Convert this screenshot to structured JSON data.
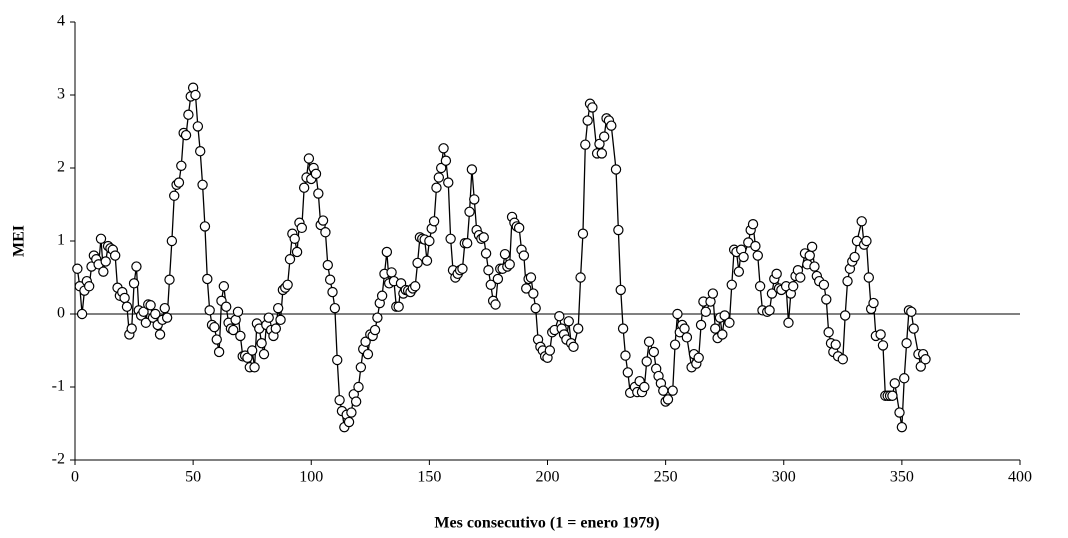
{
  "chart_data": {
    "type": "line",
    "ylabel": "MEI",
    "xlabel": "Mes consecutivo (1 = enero 1979)",
    "xlim": [
      0,
      400
    ],
    "xticks": [
      0,
      50,
      100,
      150,
      200,
      250,
      300,
      350,
      400
    ],
    "ylim": [
      -2,
      4
    ],
    "yticks": [
      -2,
      -1,
      0,
      1,
      2,
      3,
      4
    ],
    "series": [
      {
        "name": "MEI",
        "color": "#000000",
        "x": [
          1,
          2,
          3,
          4,
          5,
          6,
          7,
          8,
          9,
          10,
          11,
          12,
          13,
          14,
          15,
          16,
          17,
          18,
          19,
          20,
          21,
          22,
          23,
          24,
          25,
          26,
          27,
          28,
          29,
          30,
          31,
          32,
          33,
          34,
          35,
          36,
          37,
          38,
          39,
          40,
          41,
          42,
          43,
          44,
          45,
          46,
          47,
          48,
          49,
          50,
          51,
          52,
          53,
          54,
          55,
          56,
          57,
          58,
          59,
          60,
          61,
          62,
          63,
          64,
          65,
          66,
          67,
          68,
          69,
          70,
          71,
          72,
          73,
          74,
          75,
          76,
          77,
          78,
          79,
          80,
          81,
          82,
          83,
          84,
          85,
          86,
          87,
          88,
          89,
          90,
          91,
          92,
          93,
          94,
          95,
          96,
          97,
          98,
          99,
          100,
          101,
          102,
          103,
          104,
          105,
          106,
          107,
          108,
          109,
          110,
          111,
          112,
          113,
          114,
          115,
          116,
          117,
          118,
          119,
          120,
          121,
          122,
          123,
          124,
          125,
          126,
          127,
          128,
          129,
          130,
          131,
          132,
          133,
          134,
          135,
          136,
          137,
          138,
          139,
          140,
          141,
          142,
          143,
          144,
          145,
          146,
          147,
          148,
          149,
          150,
          151,
          152,
          153,
          154,
          155,
          156,
          157,
          158,
          159,
          160,
          161,
          162,
          163,
          164,
          165,
          166,
          167,
          168,
          169,
          170,
          171,
          172,
          173,
          174,
          175,
          176,
          177,
          178,
          179,
          180,
          181,
          182,
          183,
          184,
          185,
          186,
          187,
          188,
          189,
          190,
          191,
          192,
          193,
          194,
          195,
          196,
          197,
          198,
          199,
          200,
          201,
          202,
          203,
          205,
          206,
          207,
          208,
          209,
          210,
          211,
          213,
          214,
          215,
          216,
          217,
          218,
          219,
          221,
          222,
          223,
          224,
          225,
          226,
          227,
          229,
          230,
          231,
          232,
          233,
          234,
          235,
          237,
          238,
          239,
          240,
          241,
          242,
          243,
          245,
          246,
          247,
          248,
          249,
          250,
          251,
          253,
          254,
          255,
          256,
          257,
          258,
          259,
          261,
          262,
          263,
          264,
          265,
          266,
          267,
          269,
          270,
          271,
          272,
          273,
          274,
          275,
          277,
          278,
          279,
          280,
          281,
          282,
          283,
          285,
          286,
          287,
          288,
          289,
          290,
          291,
          293,
          294,
          295,
          296,
          297,
          298,
          299,
          301,
          302,
          303,
          304,
          305,
          306,
          307,
          309,
          310,
          311,
          312,
          313,
          314,
          315,
          317,
          318,
          319,
          320,
          321,
          322,
          323,
          325,
          326,
          327,
          328,
          329,
          330,
          331,
          333,
          334,
          335,
          336,
          337,
          338,
          339,
          341,
          342,
          343,
          344,
          345,
          346,
          347,
          349,
          350,
          351,
          352,
          353,
          354,
          355,
          357,
          358,
          359,
          360
        ],
        "values": [
          0.62,
          0.38,
          0,
          0.32,
          0.45,
          0.38,
          0.65,
          0.8,
          0.75,
          0.68,
          1.03,
          0.58,
          0.72,
          0.93,
          0.9,
          0.88,
          0.8,
          0.36,
          0.25,
          0.3,
          0.22,
          0.1,
          -0.28,
          -0.2,
          0.42,
          0.65,
          0.05,
          -0.02,
          0.03,
          -0.12,
          0.13,
          0.12,
          -0.05,
          0,
          -0.15,
          -0.28,
          -0.08,
          0.08,
          -0.05,
          0.47,
          1,
          1.62,
          1.77,
          1.8,
          2.03,
          2.48,
          2.45,
          2.73,
          2.98,
          3.1,
          3,
          2.57,
          2.23,
          1.77,
          1.2,
          0.48,
          0.05,
          -0.15,
          -0.18,
          -0.35,
          -0.52,
          0.18,
          0.38,
          0.1,
          -0.12,
          -0.2,
          -0.22,
          -0.08,
          0.03,
          -0.3,
          -0.58,
          -0.57,
          -0.6,
          -0.73,
          -0.5,
          -0.73,
          -0.13,
          -0.2,
          -0.4,
          -0.55,
          -0.15,
          -0.05,
          -0.22,
          -0.3,
          -0.2,
          0.08,
          -0.08,
          0.33,
          0.36,
          0.4,
          0.75,
          1.1,
          1.03,
          0.85,
          1.25,
          1.18,
          1.73,
          1.87,
          2.13,
          1.85,
          2,
          1.92,
          1.65,
          1.22,
          1.28,
          1.12,
          0.67,
          0.47,
          0.3,
          0.08,
          -0.63,
          -1.18,
          -1.33,
          -1.55,
          -1.38,
          -1.48,
          -1.35,
          -1.1,
          -1.2,
          -1,
          -0.73,
          -0.48,
          -0.38,
          -0.55,
          -0.28,
          -0.3,
          -0.22,
          -0.05,
          0.15,
          0.25,
          0.55,
          0.85,
          0.42,
          0.57,
          0.45,
          0.1,
          0.1,
          0.42,
          0.28,
          0.33,
          0.32,
          0.3,
          0.35,
          0.38,
          0.7,
          1.05,
          1.03,
          1.02,
          0.73,
          1,
          1.17,
          1.27,
          1.73,
          1.87,
          2,
          2.27,
          2.1,
          1.8,
          1.03,
          0.6,
          0.5,
          0.55,
          0.6,
          0.62,
          0.97,
          0.97,
          1.4,
          1.98,
          1.57,
          1.15,
          1.08,
          1.03,
          1.05,
          0.83,
          0.6,
          0.4,
          0.18,
          0.13,
          0.48,
          0.62,
          0.62,
          0.82,
          0.65,
          0.68,
          1.33,
          1.25,
          1.2,
          1.18,
          0.88,
          0.8,
          0.35,
          0.48,
          0.5,
          0.28,
          0.08,
          -0.35,
          -0.45,
          -0.5,
          -0.58,
          -0.6,
          -0.5,
          -0.25,
          -0.22,
          -0.03,
          -0.2,
          -0.28,
          -0.35,
          -0.1,
          -0.4,
          -0.45,
          -0.2,
          0.5,
          1.1,
          2.32,
          2.65,
          2.88,
          2.83,
          2.2,
          2.33,
          2.2,
          2.43,
          2.68,
          2.65,
          2.58,
          1.98,
          1.15,
          0.33,
          -0.2,
          -0.57,
          -0.8,
          -1.08,
          -1,
          -1.07,
          -0.92,
          -1.07,
          -1,
          -0.65,
          -0.38,
          -0.52,
          -0.75,
          -0.85,
          -0.95,
          -1.05,
          -1.2,
          -1.17,
          -1.05,
          -0.42,
          0,
          -0.25,
          -0.15,
          -0.2,
          -0.32,
          -0.73,
          -0.55,
          -0.68,
          -0.6,
          -0.15,
          0.17,
          0.03,
          0.17,
          0.28,
          -0.2,
          -0.33,
          -0.05,
          -0.28,
          -0.02,
          -0.12,
          0.4,
          0.88,
          0.85,
          0.58,
          0.88,
          0.78,
          0.98,
          1.15,
          1.23,
          0.93,
          0.8,
          0.38,
          0.05,
          0.03,
          0.05,
          0.28,
          0.48,
          0.55,
          0.35,
          0.33,
          0.38,
          -0.12,
          0.28,
          0.38,
          0.52,
          0.6,
          0.5,
          0.83,
          0.68,
          0.8,
          0.92,
          0.65,
          0.52,
          0.45,
          0.4,
          0.2,
          -0.25,
          -0.4,
          -0.52,
          -0.42,
          -0.58,
          -0.62,
          -0.02,
          0.45,
          0.62,
          0.72,
          0.78,
          1,
          1.27,
          0.95,
          1,
          0.5,
          0.07,
          0.15,
          -0.3,
          -0.28,
          -0.43,
          -1.12,
          -1.12,
          -1.12,
          -1.12,
          -0.95,
          -1.35,
          -1.55,
          -0.88,
          -0.4,
          0.05,
          0.03,
          -0.2,
          -0.55,
          -0.72,
          -0.55,
          -0.62
        ]
      }
    ]
  }
}
